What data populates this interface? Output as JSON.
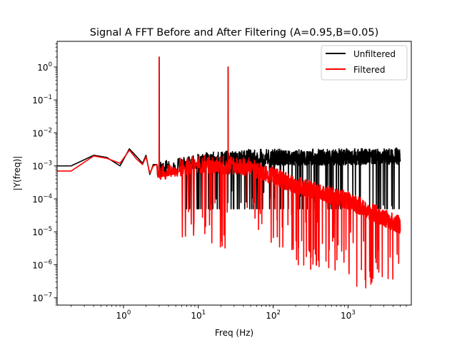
{
  "chart_data": {
    "type": "line",
    "title": "Signal A FFT Before and After Filtering (A=0.95,B=0.05)",
    "xlabel": "Freq (Hz)",
    "ylabel": "|Y(freq)|",
    "xscale": "log",
    "yscale": "log",
    "xlim": [
      0.13,
      7000
    ],
    "ylim": [
      6e-08,
      6
    ],
    "x_ticks": [
      {
        "value": 1,
        "base": "10",
        "exp": "0"
      },
      {
        "value": 10,
        "base": "10",
        "exp": "1"
      },
      {
        "value": 100,
        "base": "10",
        "exp": "2"
      },
      {
        "value": 1000,
        "base": "10",
        "exp": "3"
      }
    ],
    "y_ticks": [
      {
        "value": 1e-07,
        "base": "10",
        "exp": "−7"
      },
      {
        "value": 1e-06,
        "base": "10",
        "exp": "−6"
      },
      {
        "value": 1e-05,
        "base": "10",
        "exp": "−5"
      },
      {
        "value": 0.0001,
        "base": "10",
        "exp": "−4"
      },
      {
        "value": 0.001,
        "base": "10",
        "exp": "−3"
      },
      {
        "value": 0.01,
        "base": "10",
        "exp": "−2"
      },
      {
        "value": 0.1,
        "base": "10",
        "exp": "−1"
      },
      {
        "value": 1,
        "base": "10",
        "exp": "0"
      }
    ],
    "legend": {
      "placement": "top-right",
      "entries": [
        "Unfiltered",
        "Filtered"
      ]
    },
    "peaks": [
      {
        "x": 3.0,
        "y": 2.0
      },
      {
        "x": 25.0,
        "y": 1.0
      }
    ],
    "fmax": 5000,
    "series": [
      {
        "name": "Unfiltered",
        "color": "#000000",
        "low_freq_points": [
          [
            0.1,
            0.001
          ],
          [
            0.2,
            0.001
          ],
          [
            0.4,
            0.0021
          ],
          [
            0.6,
            0.0018
          ],
          [
            0.9,
            0.001
          ],
          [
            1.2,
            0.0033
          ],
          [
            1.5,
            0.0019
          ],
          [
            1.8,
            0.0012
          ],
          [
            2.0,
            0.0021
          ],
          [
            2.25,
            0.00055
          ],
          [
            2.5,
            0.0011
          ],
          [
            2.8,
            0.0011
          ]
        ],
        "noise_floor_points": [
          [
            3,
            0.0015
          ],
          [
            10,
            0.0025
          ],
          [
            50,
            0.0032
          ],
          [
            5000,
            0.0035
          ]
        ],
        "noise_spread_decades": 0.5,
        "deep_dip_min": 5e-05
      },
      {
        "name": "Filtered",
        "color": "#ff0000",
        "low_freq_points": [
          [
            0.1,
            0.0007
          ],
          [
            0.2,
            0.0007
          ],
          [
            0.4,
            0.002
          ],
          [
            0.6,
            0.0017
          ],
          [
            0.9,
            0.0012
          ],
          [
            1.2,
            0.003
          ],
          [
            1.5,
            0.0016
          ],
          [
            1.8,
            0.0011
          ],
          [
            2.0,
            0.0019
          ],
          [
            2.25,
            0.0006
          ],
          [
            2.5,
            0.001
          ],
          [
            2.8,
            0.0011
          ]
        ],
        "noise_floor_points": [
          [
            3,
            0.0013
          ],
          [
            10,
            0.0022
          ],
          [
            50,
            0.0018
          ],
          [
            200,
            0.0005
          ],
          [
            1000,
            0.00017
          ],
          [
            5000,
            3e-05
          ]
        ],
        "noise_spread_decades": 0.55,
        "deep_dip_min": 2e-07
      }
    ]
  }
}
